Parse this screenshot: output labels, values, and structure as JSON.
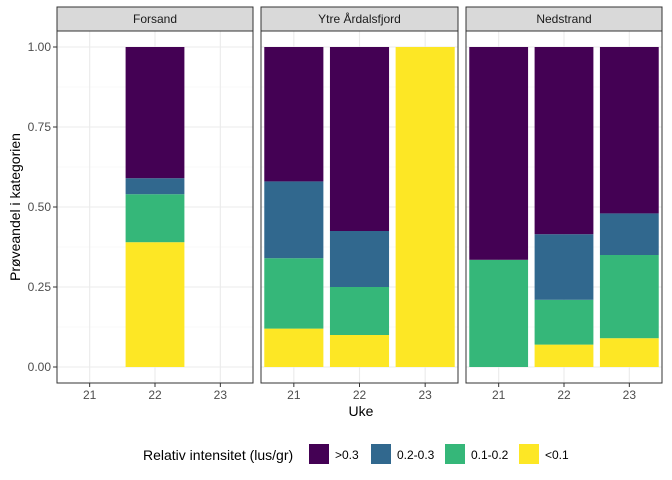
{
  "chart_data": {
    "type": "bar",
    "subtype": "stacked-proportion-faceted",
    "xlabel": "Uke",
    "ylabel": "Prøveandel i kategorien",
    "ylim": [
      0,
      1
    ],
    "yticks": [
      "0.00",
      "0.25",
      "0.50",
      "0.75",
      "1.00"
    ],
    "categories": [
      "21",
      "22",
      "23"
    ],
    "legend": {
      "title": "Relativ intensitet (lus/gr)",
      "position": "bottom",
      "items": [
        {
          "label": ">0.3",
          "color": "#440154"
        },
        {
          "label": "0.2-0.3",
          "color": "#31688E"
        },
        {
          "label": "0.1-0.2",
          "color": "#35B779"
        },
        {
          "label": "<0.1",
          "color": "#FDE725"
        }
      ]
    },
    "stack_order_bottom_to_top": [
      "<0.1",
      "0.1-0.2",
      "0.2-0.3",
      ">0.3"
    ],
    "facets": [
      {
        "name": "Forsand",
        "bars": [
          {
            "week": "22",
            "values": {
              "<0.1": 0.39,
              "0.1-0.2": 0.15,
              "0.2-0.3": 0.05,
              ">0.3": 0.41
            }
          }
        ]
      },
      {
        "name": "Ytre Årdalsfjord",
        "bars": [
          {
            "week": "21",
            "values": {
              "<0.1": 0.12,
              "0.1-0.2": 0.22,
              "0.2-0.3": 0.24,
              ">0.3": 0.42
            }
          },
          {
            "week": "22",
            "values": {
              "<0.1": 0.1,
              "0.1-0.2": 0.15,
              "0.2-0.3": 0.175,
              ">0.3": 0.575
            }
          },
          {
            "week": "23",
            "values": {
              "<0.1": 1.0,
              "0.1-0.2": 0,
              "0.2-0.3": 0,
              ">0.3": 0
            }
          }
        ]
      },
      {
        "name": "Nedstrand",
        "bars": [
          {
            "week": "21",
            "values": {
              "<0.1": 0,
              "0.1-0.2": 0.335,
              "0.2-0.3": 0,
              ">0.3": 0.665
            }
          },
          {
            "week": "22",
            "values": {
              "<0.1": 0.07,
              "0.1-0.2": 0.14,
              "0.2-0.3": 0.205,
              ">0.3": 0.585
            }
          },
          {
            "week": "23",
            "values": {
              "<0.1": 0.09,
              "0.1-0.2": 0.26,
              "0.2-0.3": 0.13,
              ">0.3": 0.52
            }
          }
        ]
      }
    ]
  }
}
